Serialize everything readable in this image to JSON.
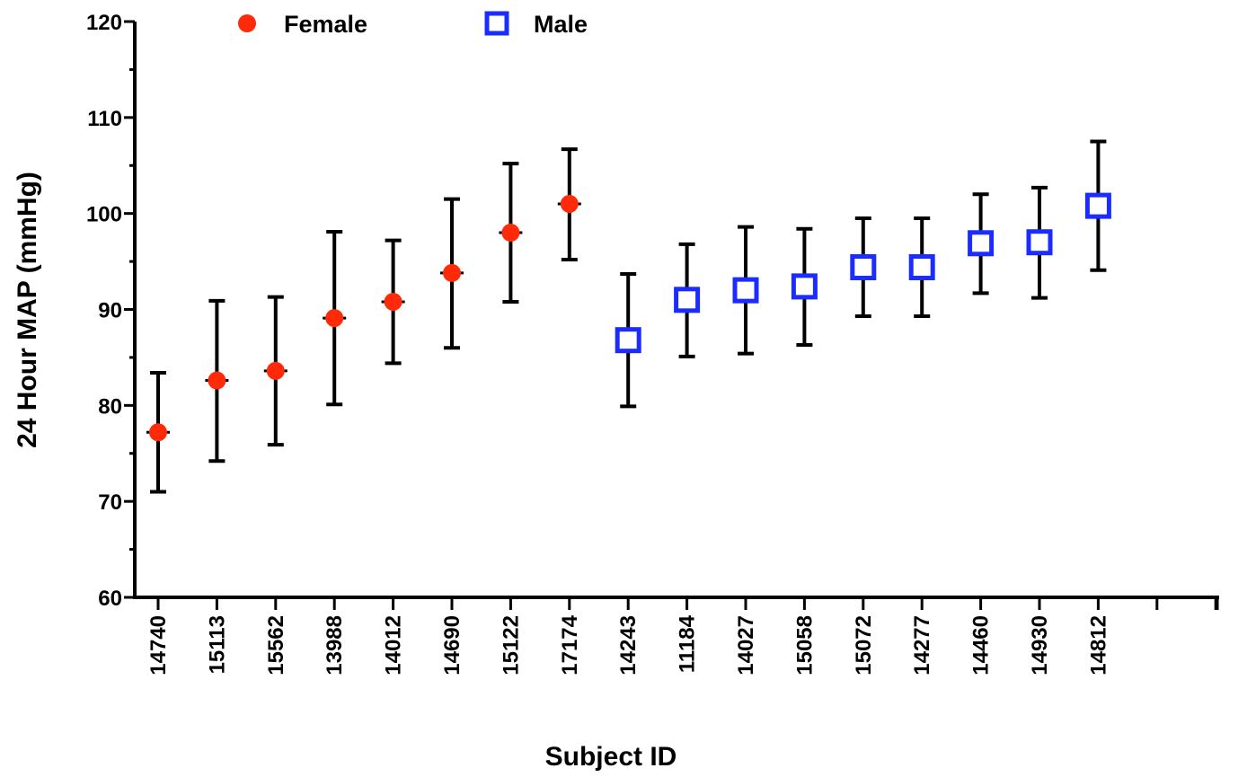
{
  "chart_data": {
    "type": "scatter",
    "xlabel": "Subject ID",
    "ylabel": "24 Hour MAP  (mmHg)",
    "ylim": [
      60,
      120
    ],
    "yticks": [
      60,
      70,
      80,
      90,
      100,
      110,
      120
    ],
    "grid": false,
    "legend_position": "top",
    "categories": [
      "14740",
      "15113",
      "15562",
      "13988",
      "14012",
      "14690",
      "15122",
      "17174",
      "14243",
      "11184",
      "14027",
      "15058",
      "15072",
      "14277",
      "14460",
      "14930",
      "14812"
    ],
    "extra_empty_slots": 2,
    "series": [
      {
        "name": "Female",
        "marker": "filled-circle",
        "color": "#ff2a0a",
        "points": [
          {
            "category": "14740",
            "mean": 77.2,
            "lower": 71.0,
            "upper": 83.4
          },
          {
            "category": "15113",
            "mean": 82.6,
            "lower": 74.2,
            "upper": 90.9
          },
          {
            "category": "15562",
            "mean": 83.6,
            "lower": 75.9,
            "upper": 91.3
          },
          {
            "category": "13988",
            "mean": 89.1,
            "lower": 80.1,
            "upper": 98.1
          },
          {
            "category": "14012",
            "mean": 90.8,
            "lower": 84.4,
            "upper": 97.2
          },
          {
            "category": "14690",
            "mean": 93.8,
            "lower": 86.0,
            "upper": 101.5
          },
          {
            "category": "15122",
            "mean": 98.0,
            "lower": 90.8,
            "upper": 105.2
          },
          {
            "category": "17174",
            "mean": 101.0,
            "lower": 95.2,
            "upper": 106.7
          }
        ]
      },
      {
        "name": "Male",
        "marker": "open-square",
        "color": "#1a2cff",
        "points": [
          {
            "category": "14243",
            "mean": 86.8,
            "lower": 79.9,
            "upper": 93.7
          },
          {
            "category": "11184",
            "mean": 91.0,
            "lower": 85.1,
            "upper": 96.8
          },
          {
            "category": "14027",
            "mean": 92.0,
            "lower": 85.4,
            "upper": 98.6
          },
          {
            "category": "15058",
            "mean": 92.4,
            "lower": 86.3,
            "upper": 98.4
          },
          {
            "category": "15072",
            "mean": 94.4,
            "lower": 89.3,
            "upper": 99.5
          },
          {
            "category": "14277",
            "mean": 94.4,
            "lower": 89.3,
            "upper": 99.5
          },
          {
            "category": "14460",
            "mean": 96.9,
            "lower": 91.7,
            "upper": 102.0
          },
          {
            "category": "14930",
            "mean": 97.0,
            "lower": 91.2,
            "upper": 102.7
          },
          {
            "category": "14812",
            "mean": 100.8,
            "lower": 94.1,
            "upper": 107.5
          }
        ]
      }
    ]
  }
}
